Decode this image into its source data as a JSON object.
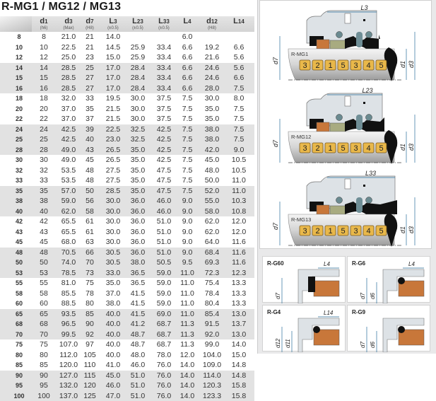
{
  "title": "R-MG1 / MG12 / MG13",
  "columns": [
    {
      "main": "d1",
      "sub": "(h6)"
    },
    {
      "main": "d3",
      "sub": "(Max)"
    },
    {
      "main": "d7",
      "sub": "(H8)"
    },
    {
      "main": "L3",
      "sub": "(±0.5)"
    },
    {
      "main": "L23",
      "sub": "(±0.5)"
    },
    {
      "main": "L33",
      "sub": "(±0.5)"
    },
    {
      "main": "L4",
      "sub": ""
    },
    {
      "main": "d12",
      "sub": "(H8)"
    },
    {
      "main": "L14",
      "sub": ""
    }
  ],
  "rows": [
    [
      "8",
      "8",
      "21.0",
      "21",
      "14.0",
      "",
      "",
      "6.0",
      "",
      ""
    ],
    [
      "10",
      "10",
      "22.5",
      "21",
      "14.5",
      "25.9",
      "33.4",
      "6.6",
      "19.2",
      "6.6"
    ],
    [
      "12",
      "12",
      "25.0",
      "23",
      "15.0",
      "25.9",
      "33.4",
      "6.6",
      "21.6",
      "5.6"
    ],
    [
      "14",
      "14",
      "28.5",
      "25",
      "17.0",
      "28.4",
      "33.4",
      "6.6",
      "24.6",
      "5.6"
    ],
    [
      "15",
      "15",
      "28.5",
      "27",
      "17.0",
      "28.4",
      "33.4",
      "6.6",
      "24.6",
      "6.6"
    ],
    [
      "16",
      "16",
      "28.5",
      "27",
      "17.0",
      "28.4",
      "33.4",
      "6.6",
      "28.0",
      "7.5"
    ],
    [
      "18",
      "18",
      "32.0",
      "33",
      "19.5",
      "30.0",
      "37.5",
      "7.5",
      "30.0",
      "8.0"
    ],
    [
      "20",
      "20",
      "37.0",
      "35",
      "21.5",
      "30.0",
      "37.5",
      "7.5",
      "35.0",
      "7.5"
    ],
    [
      "22",
      "22",
      "37.0",
      "37",
      "21.5",
      "30.0",
      "37.5",
      "7.5",
      "35.0",
      "7.5"
    ],
    [
      "24",
      "24",
      "42.5",
      "39",
      "22.5",
      "32.5",
      "42.5",
      "7.5",
      "38.0",
      "7.5"
    ],
    [
      "25",
      "25",
      "42.5",
      "40",
      "23.0",
      "32.5",
      "42.5",
      "7.5",
      "38.0",
      "7.5"
    ],
    [
      "28",
      "28",
      "49.0",
      "43",
      "26.5",
      "35.0",
      "42.5",
      "7.5",
      "42.0",
      "9.0"
    ],
    [
      "30",
      "30",
      "49.0",
      "45",
      "26.5",
      "35.0",
      "42.5",
      "7.5",
      "45.0",
      "10.5"
    ],
    [
      "32",
      "32",
      "53.5",
      "48",
      "27.5",
      "35.0",
      "47.5",
      "7.5",
      "48.0",
      "10.5"
    ],
    [
      "33",
      "33",
      "53.5",
      "48",
      "27.5",
      "35.0",
      "47.5",
      "7.5",
      "50.0",
      "11.0"
    ],
    [
      "35",
      "35",
      "57.0",
      "50",
      "28.5",
      "35.0",
      "47.5",
      "7.5",
      "52.0",
      "11.0"
    ],
    [
      "38",
      "38",
      "59.0",
      "56",
      "30.0",
      "36.0",
      "46.0",
      "9.0",
      "55.0",
      "10.3"
    ],
    [
      "40",
      "40",
      "62.0",
      "58",
      "30.0",
      "36.0",
      "46.0",
      "9.0",
      "58.0",
      "10.8"
    ],
    [
      "42",
      "42",
      "65.5",
      "61",
      "30.0",
      "36.0",
      "51.0",
      "9.0",
      "62.0",
      "12.0"
    ],
    [
      "43",
      "43",
      "65.5",
      "61",
      "30.0",
      "36.0",
      "51.0",
      "9.0",
      "62.0",
      "12.0"
    ],
    [
      "45",
      "45",
      "68.0",
      "63",
      "30.0",
      "36.0",
      "51.0",
      "9.0",
      "64.0",
      "11.6"
    ],
    [
      "48",
      "48",
      "70.5",
      "66",
      "30.5",
      "36.0",
      "51.0",
      "9.0",
      "68.4",
      "11.6"
    ],
    [
      "50",
      "50",
      "74.0",
      "70",
      "30.5",
      "38.0",
      "50.5",
      "9.5",
      "69.3",
      "11.6"
    ],
    [
      "53",
      "53",
      "78.5",
      "73",
      "33.0",
      "36.5",
      "59.0",
      "11.0",
      "72.3",
      "12.3"
    ],
    [
      "55",
      "55",
      "81.0",
      "75",
      "35.0",
      "36.5",
      "59.0",
      "11.0",
      "75.4",
      "13.3"
    ],
    [
      "58",
      "58",
      "85.5",
      "78",
      "37.0",
      "41.5",
      "59.0",
      "11.0",
      "78.4",
      "13.3"
    ],
    [
      "60",
      "60",
      "88.5",
      "80",
      "38.0",
      "41.5",
      "59.0",
      "11.0",
      "80.4",
      "13.3"
    ],
    [
      "65",
      "65",
      "93.5",
      "85",
      "40.0",
      "41.5",
      "69.0",
      "11.0",
      "85.4",
      "13.0"
    ],
    [
      "68",
      "68",
      "96.5",
      "90",
      "40.0",
      "41.2",
      "68.7",
      "11.3",
      "91.5",
      "13.7"
    ],
    [
      "70",
      "70",
      "99.5",
      "92",
      "40.0",
      "48.7",
      "68.7",
      "11.3",
      "92.0",
      "13.0"
    ],
    [
      "75",
      "75",
      "107.0",
      "97",
      "40.0",
      "48.7",
      "68.7",
      "11.3",
      "99.0",
      "14.0"
    ],
    [
      "80",
      "80",
      "112.0",
      "105",
      "40.0",
      "48.0",
      "78.0",
      "12.0",
      "104.0",
      "15.0"
    ],
    [
      "85",
      "85",
      "120.0",
      "110",
      "41.0",
      "46.0",
      "76.0",
      "14.0",
      "109.0",
      "14.8"
    ],
    [
      "90",
      "90",
      "127.0",
      "115",
      "45.0",
      "51.0",
      "76.0",
      "14.0",
      "114.0",
      "14.8"
    ],
    [
      "95",
      "95",
      "132.0",
      "120",
      "46.0",
      "51.0",
      "76.0",
      "14.0",
      "120.3",
      "15.8"
    ],
    [
      "100",
      "100",
      "137.0",
      "125",
      "47.0",
      "51.0",
      "76.0",
      "14.0",
      "123.3",
      "15.8"
    ]
  ],
  "diagrams": [
    {
      "name": "R-MG1",
      "length_label": "L3",
      "parts": [
        "3",
        "2",
        "1",
        "5",
        "3",
        "4",
        "5"
      ],
      "d_left": "d7",
      "d_right1": "d1",
      "d_right2": "d3"
    },
    {
      "name": "R-MG12",
      "length_label": "L23",
      "parts": [
        "3",
        "2",
        "1",
        "5",
        "3",
        "4",
        "5"
      ],
      "d_left": "d7",
      "d_right1": "d1",
      "d_right2": "d3"
    },
    {
      "name": "R-MG13",
      "length_label": "L33",
      "parts": [
        "3",
        "2",
        "1",
        "5",
        "3",
        "4",
        "5"
      ],
      "d_left": "d7",
      "d_right1": "d1",
      "d_right2": "d3"
    }
  ],
  "seats": [
    {
      "name": "R-G60",
      "length_label": "L4",
      "d_labels": [
        "d7"
      ]
    },
    {
      "name": "R-G6",
      "length_label": "L4",
      "d_labels": [
        "d7",
        "d6"
      ]
    },
    {
      "name": "R-G4",
      "length_label": "L14",
      "d_labels": [
        "d12",
        "d11"
      ]
    },
    {
      "name": "R-G9",
      "length_label": "",
      "d_labels": [
        "d7",
        "d6"
      ]
    }
  ],
  "colors": {
    "badge": "#e9b84a",
    "seat": "#c8773a",
    "elastomer": "#111111",
    "housing": "#dde2e6",
    "dimension": "#2a6f9a"
  }
}
